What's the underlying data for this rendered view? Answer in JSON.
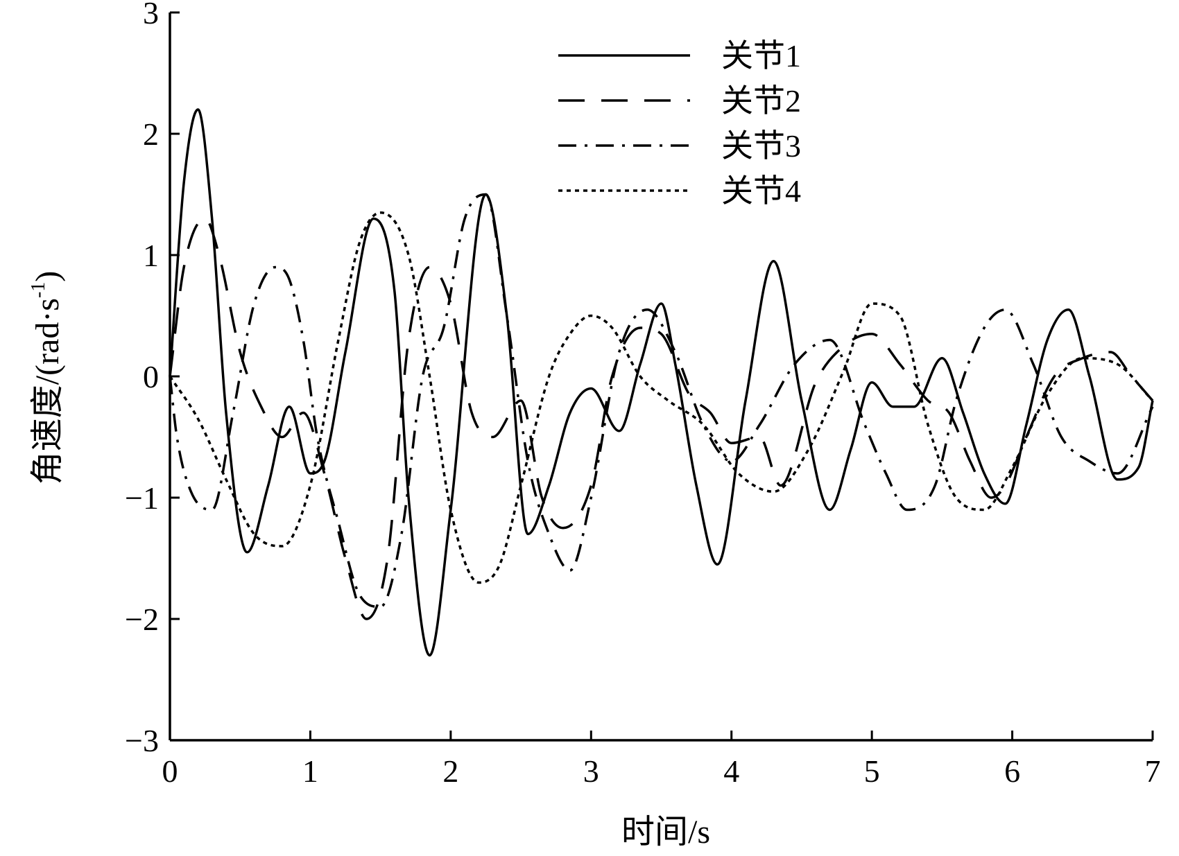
{
  "chart_data": {
    "type": "line",
    "title": "",
    "xlabel": "时间/s",
    "ylabel": "角速度/(rad·s⁻¹)",
    "ylabel_parts": {
      "main": "角速度/(rad·s",
      "sup": "-1",
      "close": ")"
    },
    "xlim": [
      0,
      7
    ],
    "ylim": [
      -3,
      3
    ],
    "xticks": [
      "0",
      "1",
      "2",
      "3",
      "4",
      "5",
      "6",
      "7"
    ],
    "yticks": [
      "3",
      "2",
      "1",
      "0",
      "−1",
      "−2",
      "−3"
    ],
    "grid": false,
    "legend_position": "top-right",
    "series": [
      {
        "name": "关节1",
        "dash": "solid",
        "x": [
          0,
          0.1,
          0.2,
          0.3,
          0.4,
          0.55,
          0.7,
          0.85,
          1.0,
          1.1,
          1.25,
          1.45,
          1.6,
          1.7,
          1.85,
          2.0,
          2.25,
          2.4,
          2.55,
          2.7,
          2.85,
          3.0,
          3.2,
          3.35,
          3.5,
          3.6,
          3.75,
          3.9,
          4.1,
          4.3,
          4.5,
          4.7,
          4.85,
          5.0,
          5.15,
          5.3,
          5.5,
          5.65,
          5.8,
          5.95,
          6.1,
          6.25,
          6.4,
          6.55,
          6.75,
          6.9,
          7.0
        ],
        "y": [
          0,
          1.6,
          2.2,
          1.3,
          -0.3,
          -1.45,
          -0.9,
          -0.25,
          -0.8,
          -0.7,
          0.2,
          1.3,
          0.7,
          -1.0,
          -2.3,
          -1.1,
          1.5,
          0.5,
          -1.3,
          -0.9,
          -0.3,
          -0.1,
          -0.45,
          0.1,
          0.6,
          0.1,
          -0.9,
          -1.55,
          -0.2,
          0.95,
          -0.2,
          -1.1,
          -0.6,
          -0.05,
          -0.25,
          -0.25,
          0.15,
          -0.3,
          -0.8,
          -1.05,
          -0.4,
          0.3,
          0.55,
          0.0,
          -0.85,
          -0.75,
          -0.2
        ]
      },
      {
        "name": "关节2",
        "dash": "long-dash",
        "x": [
          0,
          0.1,
          0.25,
          0.35,
          0.5,
          0.65,
          0.8,
          0.95,
          1.1,
          1.25,
          1.4,
          1.55,
          1.7,
          1.85,
          2.0,
          2.15,
          2.3,
          2.5,
          2.65,
          2.8,
          3.0,
          3.15,
          3.35,
          3.5,
          3.7,
          3.85,
          4.0,
          4.2,
          4.35,
          4.6,
          4.8,
          5.0,
          5.2,
          5.4,
          5.55,
          5.7,
          5.85,
          5.95,
          6.1,
          6.3,
          6.5,
          6.7,
          6.85,
          7.0
        ],
        "y": [
          0,
          0.9,
          1.3,
          1.0,
          0.2,
          -0.25,
          -0.5,
          -0.3,
          -0.8,
          -1.5,
          -2.0,
          -1.5,
          0.3,
          0.9,
          0.6,
          -0.3,
          -0.5,
          -0.2,
          -1.0,
          -1.25,
          -0.9,
          0.0,
          0.4,
          0.35,
          -0.15,
          -0.3,
          -0.55,
          -0.5,
          -0.9,
          -0.05,
          0.25,
          0.35,
          0.1,
          -0.2,
          -0.3,
          -0.7,
          -1.0,
          -0.9,
          -0.5,
          0.0,
          0.15,
          0.2,
          0.0,
          -0.2
        ]
      },
      {
        "name": "关节3",
        "dash": "dash-dot",
        "x": [
          0,
          0.05,
          0.15,
          0.3,
          0.45,
          0.6,
          0.75,
          0.85,
          0.95,
          1.05,
          1.2,
          1.35,
          1.5,
          1.65,
          1.8,
          1.95,
          2.1,
          2.25,
          2.4,
          2.55,
          2.7,
          2.85,
          3.0,
          3.2,
          3.4,
          3.6,
          3.8,
          4.0,
          4.2,
          4.45,
          4.7,
          4.95,
          5.1,
          5.25,
          5.45,
          5.6,
          5.8,
          5.95,
          6.15,
          6.35,
          6.55,
          6.75,
          7.0
        ],
        "y": [
          0,
          -0.5,
          -0.95,
          -1.1,
          -0.3,
          0.6,
          0.9,
          0.8,
          0.3,
          -0.5,
          -1.2,
          -1.8,
          -1.9,
          -1.3,
          0.0,
          0.4,
          1.3,
          1.5,
          0.5,
          -0.7,
          -1.3,
          -1.6,
          -1.0,
          0.2,
          0.55,
          0.2,
          -0.4,
          -0.7,
          -0.4,
          0.1,
          0.3,
          -0.4,
          -0.8,
          -1.1,
          -0.9,
          -0.2,
          0.4,
          0.55,
          0.1,
          -0.5,
          -0.7,
          -0.8,
          -0.25
        ]
      },
      {
        "name": "关节4",
        "dash": "dotted",
        "x": [
          0,
          0.2,
          0.4,
          0.6,
          0.8,
          1.0,
          1.2,
          1.35,
          1.5,
          1.7,
          1.85,
          2.0,
          2.2,
          2.35,
          2.5,
          2.7,
          2.85,
          3.0,
          3.15,
          3.35,
          3.55,
          3.8,
          4.05,
          4.3,
          4.55,
          4.8,
          5.0,
          5.2,
          5.4,
          5.6,
          5.8,
          6.0,
          6.25,
          6.5,
          6.75,
          7.0
        ],
        "y": [
          0,
          -0.35,
          -0.85,
          -1.3,
          -1.4,
          -0.9,
          0.3,
          1.1,
          1.35,
          1.0,
          0.0,
          -1.1,
          -1.7,
          -1.55,
          -0.9,
          0.0,
          0.35,
          0.5,
          0.4,
          0.0,
          -0.2,
          -0.4,
          -0.8,
          -0.95,
          -0.6,
          0.05,
          0.6,
          0.5,
          -0.4,
          -1.0,
          -1.1,
          -0.75,
          -0.15,
          0.15,
          0.1,
          -0.2
        ]
      }
    ]
  }
}
